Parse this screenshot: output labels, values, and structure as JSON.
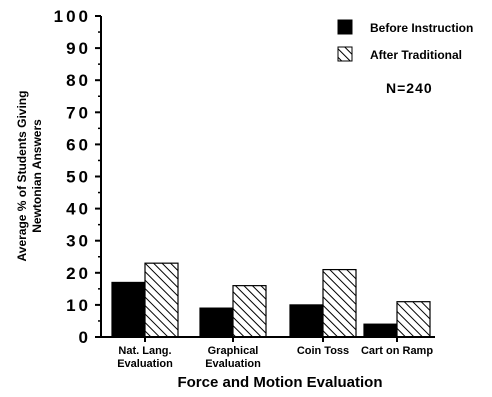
{
  "chart_data": {
    "type": "bar",
    "title": "",
    "xlabel": "Force and Motion Evaluation",
    "ylabel_line1": "Average % of Students Giving",
    "ylabel_line2": "Newtonian Answers",
    "ylim": [
      0,
      100
    ],
    "yticks": [
      "0",
      "10",
      "20",
      "30",
      "40",
      "50",
      "60",
      "70",
      "80",
      "90",
      "100"
    ],
    "categories": [
      [
        "Nat. Lang.",
        "Evaluation"
      ],
      [
        "Graphical",
        "Evaluation"
      ],
      [
        "Coin Toss"
      ],
      [
        "Cart on Ramp"
      ]
    ],
    "series": [
      {
        "name": "Before Instruction",
        "values": [
          17,
          9,
          10,
          4
        ],
        "fill": "solid",
        "color": "#000000"
      },
      {
        "name": "After Traditional",
        "values": [
          23,
          16,
          21,
          11
        ],
        "fill": "hatched",
        "color": "#000000"
      }
    ],
    "annotation": "N=240",
    "legend_position": "top-right",
    "grid": false
  }
}
